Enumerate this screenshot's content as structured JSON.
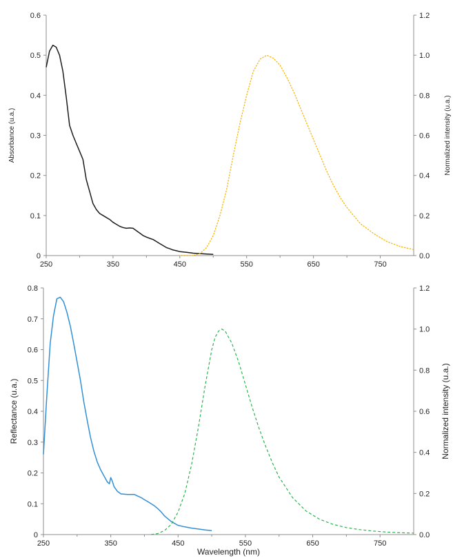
{
  "chart_data": [
    {
      "type": "line",
      "xlabel": "",
      "ylabel": "Absorbance (u.a.)",
      "y2label": "Normalized intensity (u.a.)",
      "xlim": [
        250,
        800
      ],
      "ylim": [
        0,
        0.6
      ],
      "y2lim": [
        0,
        1.2
      ],
      "x_ticks": [
        "250",
        "350",
        "450",
        "550",
        "650",
        "750"
      ],
      "y_ticks": [
        "0",
        "0.1",
        "0.2",
        "0.3",
        "0.4",
        "0.5",
        "0.6"
      ],
      "y2_ticks": [
        "0.0",
        "0.2",
        "0.4",
        "0.6",
        "0.8",
        "1.0",
        "1.2"
      ],
      "grid": false,
      "series": [
        {
          "axis": "left",
          "style": "solid",
          "color": "#1a1a1a",
          "x": [
            250,
            255,
            260,
            265,
            270,
            275,
            280,
            285,
            290,
            295,
            300,
            305,
            310,
            315,
            320,
            325,
            330,
            335,
            340,
            345,
            350,
            355,
            360,
            365,
            370,
            375,
            380,
            385,
            390,
            395,
            400,
            405,
            410,
            415,
            420,
            425,
            430,
            435,
            440,
            445,
            450,
            460,
            470,
            480,
            490,
            500
          ],
          "y": [
            0.47,
            0.51,
            0.525,
            0.52,
            0.5,
            0.46,
            0.395,
            0.325,
            0.3,
            0.28,
            0.26,
            0.24,
            0.19,
            0.16,
            0.13,
            0.115,
            0.105,
            0.1,
            0.095,
            0.09,
            0.083,
            0.078,
            0.073,
            0.07,
            0.068,
            0.069,
            0.068,
            0.062,
            0.056,
            0.05,
            0.046,
            0.043,
            0.04,
            0.035,
            0.03,
            0.025,
            0.02,
            0.017,
            0.014,
            0.012,
            0.01,
            0.008,
            0.006,
            0.005,
            0.004,
            0.003
          ]
        },
        {
          "axis": "right",
          "style": "dashed",
          "color": "#f5b400",
          "x": [
            450,
            470,
            480,
            490,
            500,
            510,
            520,
            530,
            540,
            550,
            560,
            570,
            580,
            590,
            600,
            610,
            620,
            630,
            640,
            650,
            660,
            670,
            680,
            690,
            700,
            720,
            740,
            760,
            780,
            800
          ],
          "y": [
            0.0,
            0.0,
            0.01,
            0.04,
            0.1,
            0.2,
            0.33,
            0.5,
            0.66,
            0.8,
            0.92,
            0.98,
            1.0,
            0.985,
            0.95,
            0.89,
            0.82,
            0.74,
            0.66,
            0.58,
            0.5,
            0.42,
            0.35,
            0.29,
            0.24,
            0.16,
            0.11,
            0.07,
            0.045,
            0.03
          ]
        }
      ]
    },
    {
      "type": "line",
      "xlabel": "Wavelength (nm)",
      "ylabel": "Reflectance (u.a.)",
      "y2label": "Normalized intensity (u.a.)",
      "xlim": [
        250,
        800
      ],
      "ylim": [
        0,
        0.8
      ],
      "y2lim": [
        0,
        1.2
      ],
      "x_ticks": [
        "250",
        "350",
        "450",
        "550",
        "650",
        "750"
      ],
      "y_ticks": [
        "0",
        "0.1",
        "0.2",
        "0.3",
        "0.4",
        "0.5",
        "0.6",
        "0.7",
        "0.8"
      ],
      "y2_ticks": [
        "0.0",
        "0.2",
        "0.4",
        "0.6",
        "0.8",
        "1.0",
        "1.2"
      ],
      "grid": false,
      "series": [
        {
          "axis": "left",
          "style": "solid",
          "color": "#2f8fd6",
          "x": [
            250,
            255,
            260,
            265,
            270,
            275,
            280,
            285,
            290,
            295,
            300,
            305,
            310,
            315,
            320,
            325,
            330,
            335,
            340,
            345,
            348,
            350,
            352,
            355,
            360,
            365,
            370,
            375,
            380,
            385,
            390,
            395,
            400,
            405,
            410,
            415,
            420,
            425,
            430,
            440,
            450,
            460,
            470,
            480,
            490,
            500
          ],
          "y": [
            0.26,
            0.45,
            0.62,
            0.71,
            0.765,
            0.77,
            0.755,
            0.72,
            0.675,
            0.62,
            0.56,
            0.5,
            0.43,
            0.37,
            0.315,
            0.27,
            0.235,
            0.21,
            0.19,
            0.17,
            0.165,
            0.185,
            0.175,
            0.155,
            0.14,
            0.132,
            0.131,
            0.13,
            0.13,
            0.13,
            0.125,
            0.12,
            0.113,
            0.107,
            0.1,
            0.093,
            0.084,
            0.073,
            0.06,
            0.042,
            0.03,
            0.025,
            0.021,
            0.018,
            0.015,
            0.013
          ]
        },
        {
          "axis": "right",
          "style": "dashed",
          "color": "#2bb24c",
          "x": [
            410,
            420,
            430,
            440,
            450,
            460,
            470,
            480,
            490,
            500,
            505,
            510,
            515,
            520,
            530,
            540,
            550,
            560,
            570,
            580,
            590,
            600,
            620,
            640,
            660,
            680,
            700,
            720,
            740,
            760,
            780,
            800
          ],
          "y": [
            0.0,
            0.005,
            0.02,
            0.05,
            0.11,
            0.2,
            0.34,
            0.52,
            0.72,
            0.9,
            0.96,
            0.99,
            1.0,
            0.99,
            0.93,
            0.84,
            0.73,
            0.62,
            0.52,
            0.43,
            0.35,
            0.28,
            0.18,
            0.115,
            0.075,
            0.05,
            0.034,
            0.024,
            0.017,
            0.012,
            0.009,
            0.007
          ]
        }
      ]
    }
  ]
}
